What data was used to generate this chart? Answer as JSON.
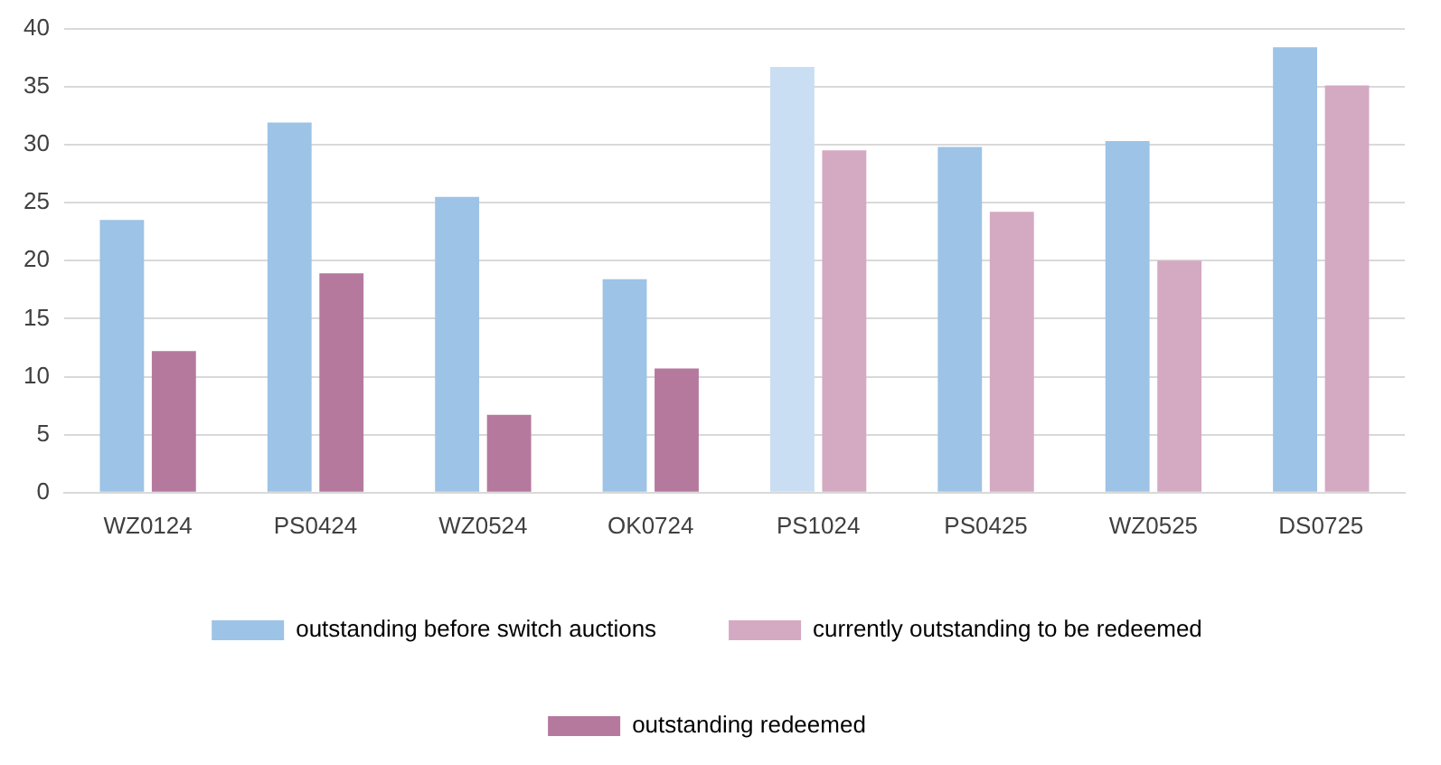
{
  "chart_data": {
    "type": "bar",
    "categories": [
      "WZ0124",
      "PS0424",
      "WZ0524",
      "OK0724",
      "PS1024",
      "PS0425",
      "WZ0525",
      "DS0725"
    ],
    "series": [
      {
        "name": "outstanding before switch auctions",
        "color": "#9dc3e6",
        "colors": [
          "#9dc3e6",
          "#9dc3e6",
          "#9dc3e6",
          "#9dc3e6",
          "#c9def2",
          "#9dc3e6",
          "#9dc3e6",
          "#9dc3e6"
        ],
        "values": [
          23.5,
          31.9,
          25.5,
          18.4,
          36.7,
          29.8,
          30.3,
          38.4
        ]
      },
      {
        "name": "currently outstanding to be redeemed",
        "color": "#d4a9c2",
        "values": [
          null,
          null,
          null,
          null,
          29.5,
          24.2,
          20.0,
          35.1
        ]
      },
      {
        "name": "outstanding redeemed",
        "color": "#b5799e",
        "values": [
          12.2,
          18.9,
          6.7,
          10.7,
          null,
          null,
          null,
          null
        ]
      }
    ],
    "ylim": [
      0,
      40
    ],
    "yticks": [
      0,
      5,
      10,
      15,
      20,
      25,
      30,
      35,
      40
    ],
    "grid": "y",
    "legend": "bottom"
  }
}
